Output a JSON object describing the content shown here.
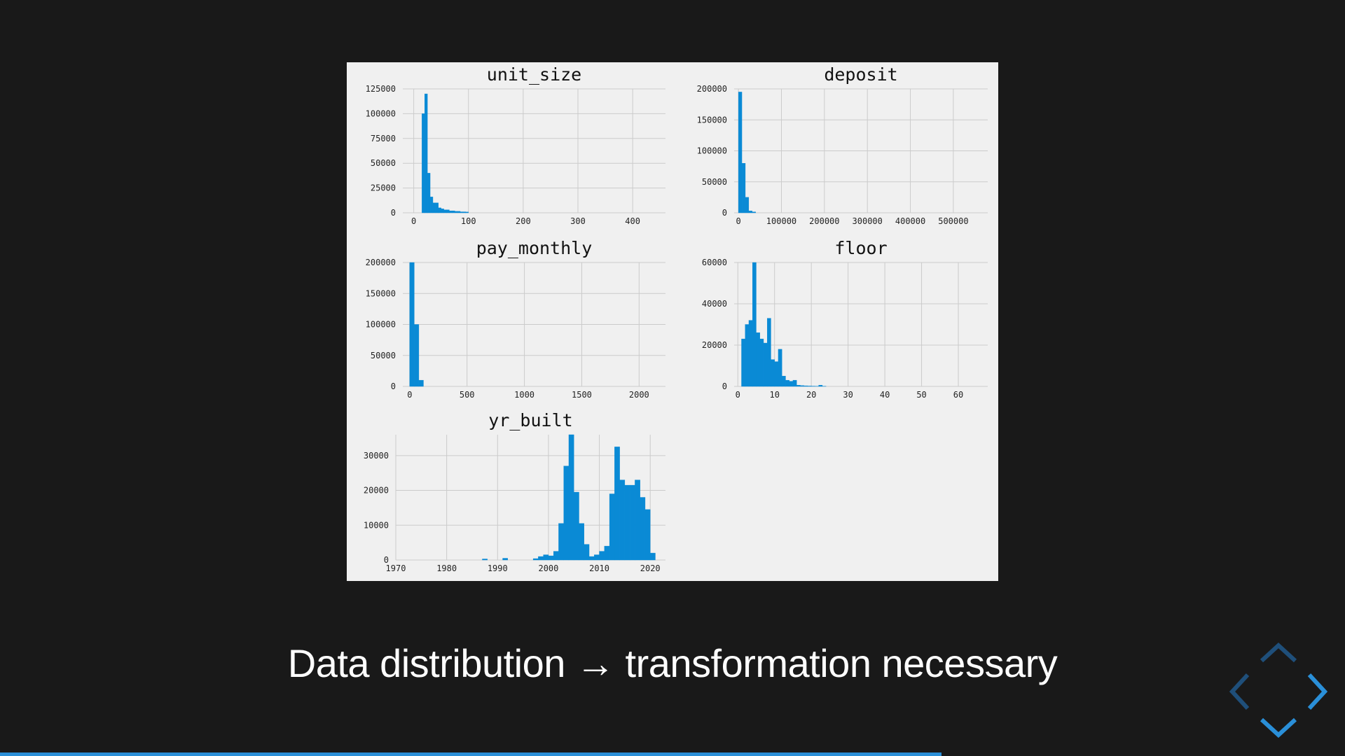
{
  "slide": {
    "caption": "Data distribution → transformation necessary",
    "progress": 0.7
  },
  "colors": {
    "background": "#191919",
    "figure_background": "#f0f0f0",
    "bar": "#0a8ad5",
    "grid": "#cbcbcb",
    "accent": "#2a8fd8",
    "accent_dim": "#1f4f7a"
  },
  "navigation": {
    "icons": {
      "up": "chevron-up-icon",
      "down": "chevron-down-icon",
      "left": "chevron-left-icon",
      "right": "chevron-right-icon"
    },
    "enabled": {
      "up": false,
      "left": false,
      "right": true,
      "down": true
    }
  },
  "chart_data": [
    {
      "type": "bar",
      "title": "unit_size",
      "xlim": [
        -20,
        460
      ],
      "ylim": [
        0,
        125000
      ],
      "xticks": [
        0,
        100,
        200,
        300,
        400
      ],
      "yticks": [
        0,
        25000,
        50000,
        75000,
        100000,
        125000
      ],
      "bin_width": 5,
      "x": [
        15,
        20,
        25,
        30,
        35,
        40,
        45,
        50,
        55,
        60,
        65,
        70,
        75,
        80,
        85,
        90,
        95
      ],
      "values": [
        100000,
        120000,
        40000,
        16000,
        10000,
        10000,
        5000,
        4000,
        3000,
        3000,
        2000,
        2000,
        1500,
        1500,
        1000,
        1000,
        800
      ]
    },
    {
      "type": "bar",
      "title": "deposit",
      "xlim": [
        -10000,
        580000
      ],
      "ylim": [
        0,
        200000
      ],
      "xticks": [
        0,
        100000,
        200000,
        300000,
        400000,
        500000
      ],
      "yticks": [
        0,
        50000,
        100000,
        150000,
        200000
      ],
      "bin_width": 8000,
      "x": [
        0,
        8000,
        16000,
        24000,
        32000
      ],
      "values": [
        195000,
        80000,
        25000,
        3000,
        1500
      ]
    },
    {
      "type": "bar",
      "title": "pay_monthly",
      "xlim": [
        -60,
        2230
      ],
      "ylim": [
        0,
        200000
      ],
      "xticks": [
        0,
        500,
        1000,
        1500,
        2000
      ],
      "yticks": [
        0,
        50000,
        100000,
        150000,
        200000
      ],
      "bin_width": 40,
      "x": [
        0,
        40,
        80
      ],
      "values": [
        200000,
        100000,
        10000
      ]
    },
    {
      "type": "bar",
      "title": "floor",
      "xlim": [
        -1,
        68
      ],
      "ylim": [
        0,
        60000
      ],
      "xticks": [
        0,
        10,
        20,
        30,
        40,
        50,
        60
      ],
      "yticks": [
        0,
        20000,
        40000,
        60000
      ],
      "bin_width": 1,
      "x": [
        1,
        2,
        3,
        4,
        5,
        6,
        7,
        8,
        9,
        10,
        11,
        12,
        13,
        14,
        15,
        16,
        17,
        18,
        19,
        20,
        21,
        22,
        23
      ],
      "values": [
        23000,
        30000,
        32000,
        60000,
        26000,
        23000,
        21000,
        33000,
        13000,
        12000,
        18000,
        5000,
        3000,
        2500,
        3000,
        600,
        400,
        300,
        200,
        150,
        100,
        600,
        100
      ]
    },
    {
      "type": "bar",
      "title": "yr_built",
      "xlim": [
        1970,
        2023
      ],
      "ylim": [
        0,
        36000
      ],
      "xticks": [
        1970,
        1980,
        1990,
        2000,
        2010,
        2020
      ],
      "yticks": [
        0,
        10000,
        20000,
        30000
      ],
      "bin_width": 1,
      "x": [
        1987,
        1991,
        1997,
        1998,
        1999,
        2000,
        2001,
        2002,
        2003,
        2004,
        2005,
        2006,
        2007,
        2008,
        2009,
        2010,
        2011,
        2012,
        2013,
        2014,
        2015,
        2016,
        2017,
        2018,
        2019,
        2020
      ],
      "values": [
        300,
        500,
        400,
        1000,
        1500,
        1200,
        2500,
        10500,
        27000,
        36000,
        19500,
        10500,
        4500,
        1000,
        1500,
        2500,
        4000,
        19000,
        32500,
        23000,
        21500,
        21500,
        23000,
        18000,
        14500,
        2000
      ]
    }
  ]
}
